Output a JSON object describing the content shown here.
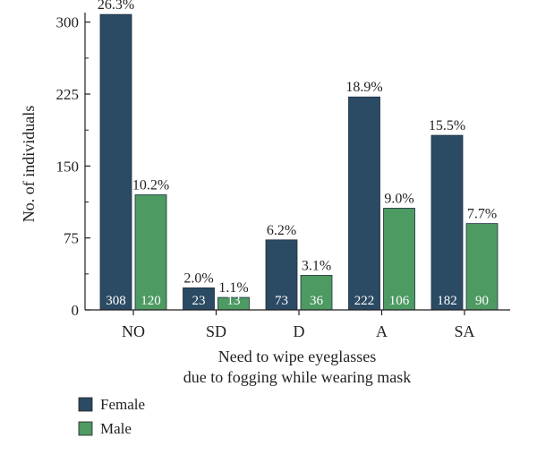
{
  "chart_data": {
    "type": "bar",
    "categories": [
      "NO",
      "SD",
      "D",
      "A",
      "SA"
    ],
    "series": [
      {
        "name": "Female",
        "color": "#2b4a63",
        "values": [
          308,
          23,
          73,
          222,
          182
        ],
        "percent_labels": [
          "26.3%",
          "2.0%",
          "6.2%",
          "18.9%",
          "15.5%"
        ]
      },
      {
        "name": "Male",
        "color": "#4d9a62",
        "values": [
          120,
          13,
          36,
          106,
          90
        ],
        "percent_labels": [
          "10.2%",
          "1.1%",
          "3.1%",
          "9.0%",
          "7.7%"
        ]
      }
    ],
    "xlabel_lines": [
      "Need to wipe eyeglasses",
      "due to fogging while wearing mask"
    ],
    "ylabel": "No. of individuals",
    "ylim": [
      0,
      310
    ],
    "yticks": [
      0,
      75,
      150,
      225,
      300
    ],
    "grid": false,
    "legend_position": "bottom-left"
  }
}
